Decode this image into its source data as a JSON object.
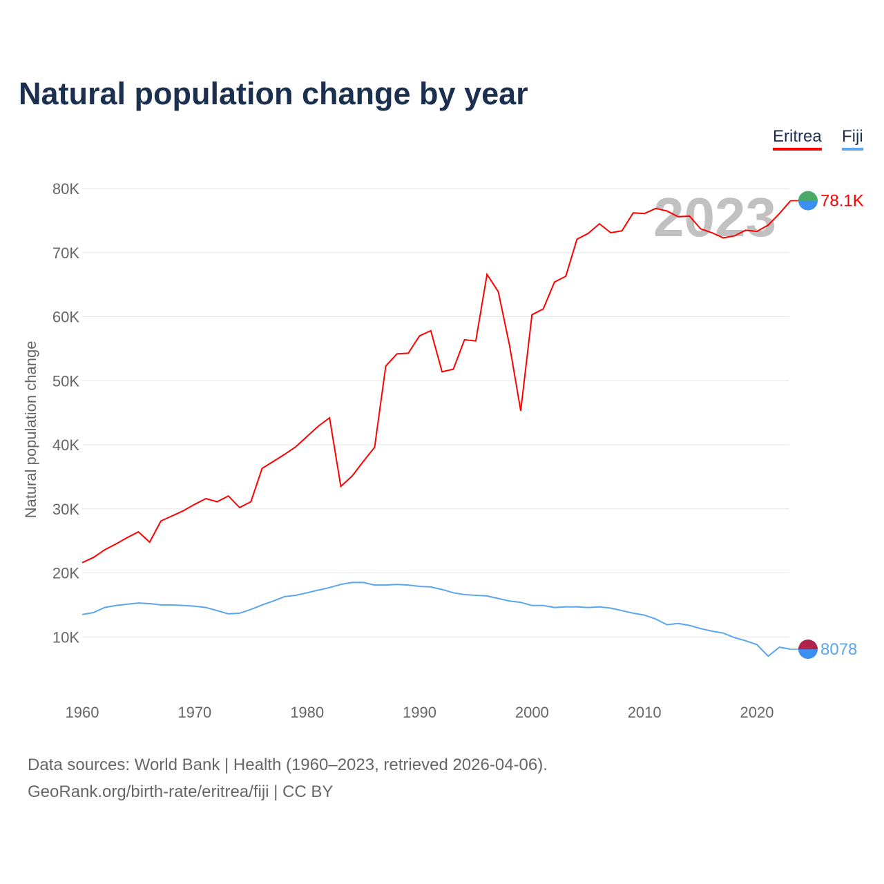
{
  "title": "Natural population change by year",
  "legend": [
    {
      "name": "Eritrea",
      "color": "#ff0000"
    },
    {
      "name": "Fiji",
      "color": "#5aa5ec"
    }
  ],
  "footer": {
    "line1": "Data sources: World Bank | Health (1960–2023, retrieved 2026-04-06).",
    "line2": "GeoRank.org/birth-rate/eritrea/fiji | CC BY"
  },
  "chart_data": {
    "type": "line",
    "title": "Natural population change by year",
    "xlabel": "",
    "ylabel": "Natural population change",
    "xlim": [
      1960,
      2023
    ],
    "ylim": [
      0,
      80000
    ],
    "x_ticks": [
      "1960",
      "1970",
      "1980",
      "1990",
      "2000",
      "2010",
      "2020"
    ],
    "y_ticks": [
      "10K",
      "20K",
      "30K",
      "40K",
      "50K",
      "60K",
      "70K",
      "80K"
    ],
    "year_label": "2023",
    "grid": true,
    "legend_position": "top-right",
    "x_start": 1960,
    "series": [
      {
        "name": "Eritrea",
        "color": "#ff0000",
        "end_label": "78.1K",
        "values": [
          21600,
          22400,
          23600,
          24500,
          25500,
          26400,
          24800,
          28100,
          28900,
          29700,
          30700,
          31600,
          31100,
          32000,
          30200,
          31100,
          36300,
          37400,
          38500,
          39700,
          41300,
          42900,
          44200,
          33500,
          35100,
          37400,
          39600,
          52300,
          54200,
          54300,
          57000,
          57800,
          51400,
          51800,
          56400,
          56200,
          66600,
          63900,
          55500,
          45300,
          60300,
          61200,
          65400,
          66300,
          72100,
          73000,
          74500,
          73100,
          73400,
          76200,
          76100,
          76900,
          76500,
          75600,
          75700,
          73700,
          73100,
          72300,
          72600,
          73500,
          73300,
          74300,
          76100,
          78100
        ]
      },
      {
        "name": "Fiji",
        "color": "#5aa5ec",
        "end_label": "8078",
        "values": [
          13500,
          13800,
          14600,
          14900,
          15100,
          15300,
          15200,
          15000,
          15000,
          14900,
          14800,
          14600,
          14100,
          13600,
          13700,
          14300,
          15000,
          15600,
          16300,
          16500,
          16900,
          17300,
          17700,
          18200,
          18500,
          18500,
          18100,
          18100,
          18200,
          18100,
          17900,
          17800,
          17400,
          16900,
          16600,
          16500,
          16400,
          16000,
          15600,
          15400,
          14900,
          14900,
          14600,
          14700,
          14700,
          14600,
          14700,
          14500,
          14100,
          13700,
          13400,
          12800,
          11900,
          12100,
          11800,
          11300,
          10900,
          10600,
          9900,
          9400,
          8800,
          7000,
          8400,
          8078
        ]
      }
    ]
  }
}
